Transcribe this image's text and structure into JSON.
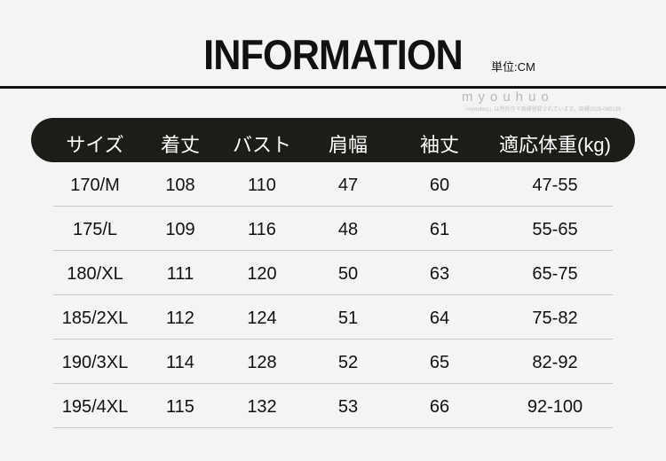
{
  "title": "INFORMATION",
  "unit": "単位:CM",
  "table": {
    "headers": [
      "サイズ",
      "着丈",
      "バスト",
      "肩幅",
      "袖丈",
      "適応体重(kg)"
    ],
    "rows": [
      [
        "170/M",
        "108",
        "110",
        "47",
        "60",
        "47-55"
      ],
      [
        "175/L",
        "109",
        "116",
        "48",
        "61",
        "55-65"
      ],
      [
        "180/XL",
        "111",
        "120",
        "50",
        "63",
        "65-75"
      ],
      [
        "185/2XL",
        "112",
        "124",
        "51",
        "64",
        "75-82"
      ],
      [
        "190/3XL",
        "114",
        "128",
        "52",
        "65",
        "82-92"
      ],
      [
        "195/4XL",
        "115",
        "132",
        "53",
        "66",
        "92-100"
      ]
    ]
  },
  "watermark": {
    "brand": "myouhuo",
    "note": "「myouhuo」は特許庁で商標登録されています。商標2025-085139"
  }
}
